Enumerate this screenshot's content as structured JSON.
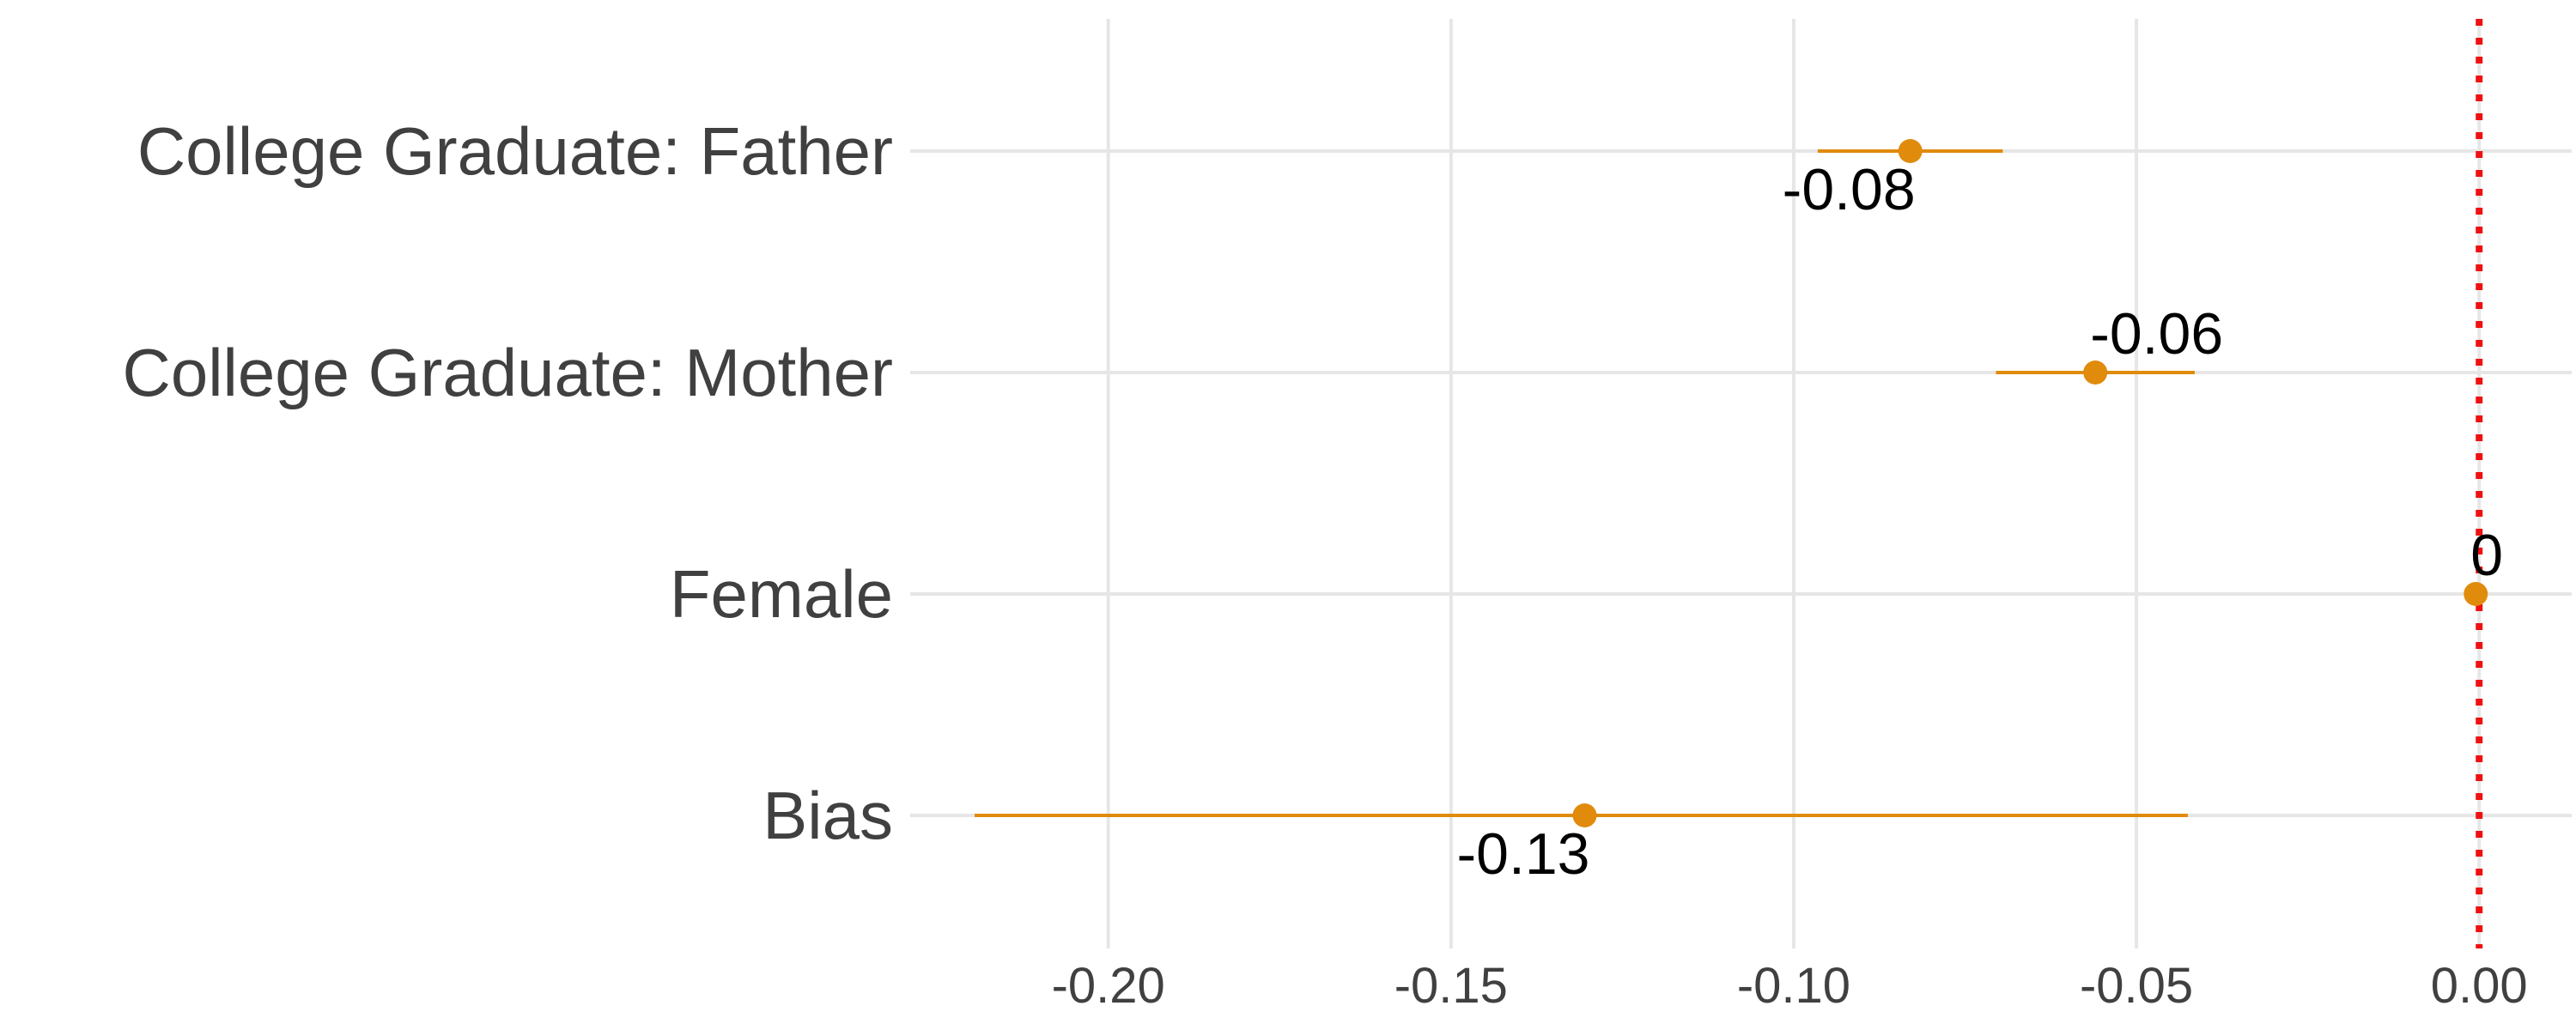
{
  "chart_data": {
    "type": "scatter",
    "subtype": "coefficient-plot-with-intervals",
    "title": "",
    "xlabel": "",
    "ylabel": "",
    "xlim": [
      -0.2289,
      0.0135
    ],
    "x_ticks": [
      -0.2,
      -0.15,
      -0.1,
      -0.05,
      0.0
    ],
    "x_tick_labels": [
      "-0.20",
      "-0.15",
      "-0.10",
      "-0.05",
      "0.00"
    ],
    "categories": [
      "College Graduate: Father",
      "College Graduate: Mother",
      "Female",
      "Bias"
    ],
    "points": [
      {
        "category": "College Graduate: Father",
        "estimate": -0.083,
        "lower": -0.0965,
        "upper": -0.0695,
        "label": "-0.08",
        "label_position": "below"
      },
      {
        "category": "College Graduate: Mother",
        "estimate": -0.056,
        "lower": -0.0705,
        "upper": -0.0415,
        "label": "-0.06",
        "label_position": "above"
      },
      {
        "category": "Female",
        "estimate": -0.0005,
        "lower": -0.0015,
        "upper": 0.0005,
        "label": "0",
        "label_position": "above"
      },
      {
        "category": "Bias",
        "estimate": -0.1305,
        "lower": -0.2195,
        "upper": -0.0425,
        "label": "-0.13",
        "label_position": "below"
      }
    ],
    "reference_line": {
      "x": 0,
      "style": "dotted",
      "color": "#ee1111"
    },
    "point_color": "#e08b0c",
    "grid": true,
    "legend": "none"
  }
}
